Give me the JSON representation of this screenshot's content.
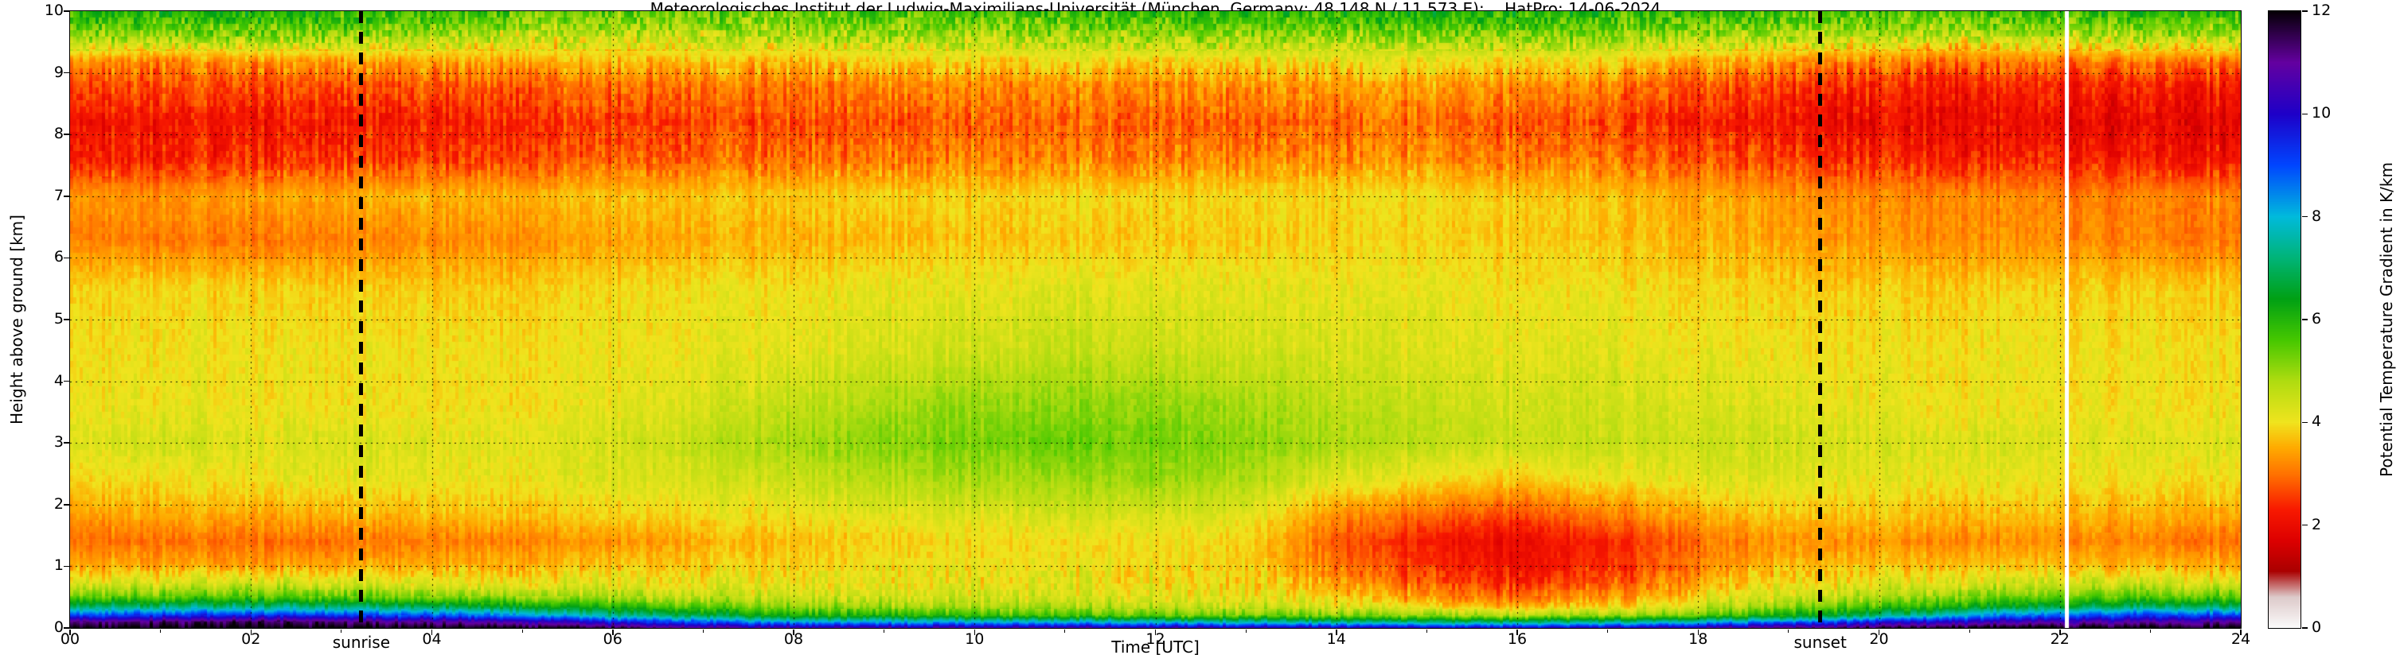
{
  "figure": {
    "title": "Meteorologisches Institut der Ludwig-Maximilians-Universität (München, Germany; 48.148 N / 11.573 E):    HatPro: 14-06-2024",
    "xlabel": "Time [UTC]",
    "ylabel": "Height above ground [km]",
    "colorbar_label": "Potential Temperature Gradient in K/km",
    "sunrise_label": "sunrise",
    "sunset_label": "sunset"
  },
  "chart_data": {
    "type": "heatmap",
    "title": "Meteorologisches Institut der Ludwig-Maximilians-Universität (München, Germany; 48.148 N / 11.573 E):    HatPro: 14-06-2024",
    "xlabel": "Time [UTC]",
    "ylabel": "Height above ground [km]",
    "values_label": "Potential Temperature Gradient in K/km",
    "x_range": [
      0,
      24
    ],
    "y_range": [
      0,
      10
    ],
    "value_range": [
      0,
      12
    ],
    "grid": true,
    "x_ticks": [
      0,
      2,
      4,
      6,
      8,
      10,
      12,
      14,
      16,
      18,
      20,
      22,
      24
    ],
    "x_tick_labels": [
      "00",
      "02",
      "04",
      "06",
      "08",
      "10",
      "12",
      "14",
      "16",
      "18",
      "20",
      "22",
      "24"
    ],
    "y_ticks": [
      0,
      1,
      2,
      3,
      4,
      5,
      6,
      7,
      8,
      9,
      10
    ],
    "y_tick_labels": [
      "0",
      "1",
      "2",
      "3",
      "4",
      "5",
      "6",
      "7",
      "8",
      "9",
      "10"
    ],
    "colorbar_ticks": [
      0,
      2,
      4,
      6,
      8,
      10,
      12
    ],
    "sunrise_time_utc": 3.22,
    "sunset_time_utc": 19.35,
    "data_gap_time_utc": 22.07,
    "colormap_stops": [
      [
        0.0,
        "#fbfbfb"
      ],
      [
        0.6,
        "#ddcaca"
      ],
      [
        1.1,
        "#aa0000"
      ],
      [
        1.7,
        "#dd0000"
      ],
      [
        2.3,
        "#f81900"
      ],
      [
        3.0,
        "#ff7300"
      ],
      [
        3.5,
        "#ffaa00"
      ],
      [
        4.0,
        "#f0e41e"
      ],
      [
        4.8,
        "#b0dc10"
      ],
      [
        5.6,
        "#46c800"
      ],
      [
        6.4,
        "#00a014"
      ],
      [
        7.2,
        "#00b478"
      ],
      [
        8.0,
        "#00badc"
      ],
      [
        9.0,
        "#0046ff"
      ],
      [
        10.0,
        "#1e00c8"
      ],
      [
        11.0,
        "#6400a0"
      ],
      [
        12.0,
        "#050005"
      ]
    ],
    "x": [
      0,
      1,
      2,
      3,
      4,
      5,
      6,
      7,
      8,
      9,
      10,
      11,
      12,
      13,
      14,
      15,
      16,
      17,
      18,
      19,
      20,
      21,
      22,
      23,
      24
    ],
    "y": [
      0,
      0.1,
      0.2,
      0.35,
      0.5,
      0.7,
      1.0,
      1.4,
      1.8,
      2.4,
      3.0,
      3.6,
      4.5,
      5.5,
      6.3,
      7.0,
      7.6,
      8.2,
      8.8,
      9.2,
      9.6,
      10
    ],
    "values": [
      [
        12,
        11.2,
        9.2,
        7.0,
        5.5,
        4.5,
        3.6,
        3.0,
        3.4,
        3.9,
        4.3,
        4.1,
        4.0,
        3.9,
        3.2,
        3.4,
        2.4,
        2.2,
        2.8,
        3.4,
        5.2,
        6.0
      ],
      [
        12,
        11.3,
        9.4,
        7.1,
        5.5,
        4.4,
        3.5,
        3.0,
        3.5,
        4.0,
        4.4,
        4.1,
        4.0,
        3.9,
        3.1,
        3.3,
        2.3,
        2.2,
        2.7,
        3.2,
        5.0,
        6.2
      ],
      [
        12,
        11.4,
        9.5,
        7.2,
        5.6,
        4.5,
        3.4,
        2.9,
        3.4,
        4.0,
        4.2,
        4.0,
        4.0,
        3.8,
        3.0,
        3.4,
        2.4,
        2.1,
        2.6,
        3.3,
        5.1,
        6.1
      ],
      [
        12,
        11.2,
        9.3,
        7.0,
        5.4,
        4.4,
        3.5,
        3.0,
        3.5,
        4.1,
        4.3,
        4.0,
        4.0,
        3.8,
        3.1,
        3.5,
        2.5,
        2.2,
        2.7,
        3.4,
        5.0,
        6.0
      ],
      [
        12,
        11.0,
        9.0,
        6.8,
        5.2,
        4.3,
        3.6,
        3.1,
        3.6,
        4.1,
        4.2,
        4.0,
        4.0,
        3.8,
        3.2,
        3.6,
        2.6,
        2.3,
        2.8,
        3.5,
        4.8,
        5.8
      ],
      [
        12,
        10.6,
        8.5,
        6.4,
        5.0,
        4.2,
        3.6,
        3.2,
        3.7,
        4.1,
        4.2,
        4.0,
        4.0,
        3.8,
        3.3,
        3.6,
        2.7,
        2.4,
        2.9,
        3.6,
        4.6,
        5.6
      ],
      [
        11.6,
        9.6,
        7.5,
        5.8,
        4.8,
        4.2,
        3.7,
        3.3,
        3.8,
        4.2,
        4.3,
        4.1,
        4.0,
        3.9,
        3.4,
        3.7,
        2.8,
        2.5,
        3.0,
        3.6,
        4.5,
        5.5
      ],
      [
        11.0,
        8.8,
        6.8,
        5.4,
        4.6,
        4.1,
        3.8,
        3.5,
        3.9,
        4.3,
        4.6,
        4.3,
        4.1,
        4.0,
        3.5,
        3.7,
        2.9,
        2.6,
        3.0,
        3.7,
        4.6,
        5.4
      ],
      [
        10.6,
        8.2,
        6.2,
        5.0,
        4.5,
        4.1,
        3.9,
        3.7,
        4.0,
        4.5,
        4.9,
        4.6,
        4.2,
        4.0,
        3.6,
        3.8,
        3.0,
        2.7,
        3.1,
        3.7,
        4.7,
        5.5
      ],
      [
        10.6,
        8.0,
        6.0,
        4.9,
        4.4,
        4.1,
        4.0,
        3.8,
        4.1,
        4.7,
        5.1,
        4.8,
        4.3,
        4.1,
        3.6,
        3.8,
        3.0,
        2.7,
        3.1,
        3.8,
        4.8,
        5.6
      ],
      [
        10.6,
        8.0,
        5.8,
        4.8,
        4.4,
        4.1,
        4.0,
        3.9,
        4.2,
        4.8,
        5.2,
        5.0,
        4.4,
        4.1,
        3.7,
        3.8,
        3.1,
        2.8,
        3.2,
        3.8,
        4.8,
        5.7
      ],
      [
        10.5,
        7.8,
        5.6,
        4.7,
        4.3,
        4.1,
        4.0,
        3.9,
        4.3,
        4.9,
        5.3,
        5.0,
        4.5,
        4.2,
        3.7,
        3.9,
        3.1,
        2.8,
        3.2,
        3.9,
        4.9,
        5.8
      ],
      [
        10.5,
        7.8,
        5.5,
        4.6,
        4.3,
        4.0,
        4.0,
        4.0,
        4.3,
        5.0,
        5.3,
        5.1,
        4.5,
        4.2,
        3.8,
        3.9,
        3.2,
        2.9,
        3.3,
        3.9,
        5.0,
        5.9
      ],
      [
        10.4,
        7.5,
        5.4,
        4.5,
        4.2,
        4.0,
        3.9,
        3.9,
        4.2,
        4.8,
        5.1,
        4.9,
        4.4,
        4.2,
        3.8,
        3.9,
        3.2,
        2.9,
        3.3,
        4.0,
        5.0,
        6.0
      ],
      [
        10.2,
        7.2,
        5.2,
        4.2,
        3.8,
        3.4,
        3.0,
        2.8,
        3.2,
        4.2,
        4.8,
        4.6,
        4.3,
        4.1,
        3.8,
        3.9,
        3.2,
        2.9,
        3.3,
        4.0,
        5.0,
        6.0
      ],
      [
        10.0,
        7.0,
        5.0,
        3.8,
        3.2,
        2.8,
        2.4,
        2.2,
        2.8,
        3.9,
        4.6,
        4.5,
        4.2,
        4.1,
        3.8,
        3.9,
        3.2,
        2.9,
        3.4,
        4.0,
        5.1,
        6.1
      ],
      [
        10.0,
        7.0,
        4.8,
        3.6,
        3.0,
        2.5,
        2.1,
        2.0,
        2.6,
        3.8,
        4.5,
        4.4,
        4.2,
        4.0,
        3.8,
        3.8,
        3.1,
        2.8,
        3.3,
        4.0,
        5.1,
        6.1
      ],
      [
        10.2,
        7.2,
        5.0,
        3.8,
        3.2,
        2.8,
        2.4,
        2.3,
        3.0,
        4.0,
        4.5,
        4.4,
        4.2,
        4.0,
        3.7,
        3.7,
        3.0,
        2.6,
        3.1,
        3.9,
        5.0,
        6.0
      ],
      [
        10.6,
        7.8,
        5.5,
        4.4,
        4.0,
        3.6,
        3.2,
        3.0,
        3.5,
        4.2,
        4.5,
        4.3,
        4.1,
        3.9,
        3.6,
        3.5,
        2.8,
        2.3,
        2.8,
        3.6,
        4.9,
        5.9
      ],
      [
        11.0,
        8.5,
        6.2,
        5.0,
        4.4,
        4.0,
        3.6,
        3.3,
        3.7,
        4.2,
        4.4,
        4.2,
        4.0,
        3.8,
        3.4,
        3.3,
        2.5,
        2.1,
        2.5,
        3.3,
        4.8,
        5.8
      ],
      [
        11.6,
        9.6,
        7.2,
        5.6,
        4.8,
        4.2,
        3.7,
        3.3,
        3.7,
        4.1,
        4.3,
        4.1,
        4.0,
        3.8,
        3.3,
        3.2,
        2.4,
        2.0,
        2.4,
        3.1,
        4.7,
        5.7
      ],
      [
        12,
        10.2,
        8.2,
        6.2,
        5.2,
        4.4,
        3.7,
        3.2,
        3.6,
        4.1,
        4.3,
        4.0,
        4.0,
        3.8,
        3.2,
        3.2,
        2.3,
        1.9,
        2.3,
        3.0,
        4.6,
        5.8
      ],
      [
        12,
        10.6,
        8.8,
        6.6,
        5.4,
        4.5,
        3.7,
        3.2,
        3.6,
        4.0,
        4.2,
        4.0,
        4.0,
        3.8,
        3.2,
        3.1,
        2.3,
        1.9,
        2.3,
        3.0,
        4.7,
        5.9
      ],
      [
        12,
        10.8,
        9.2,
        7.0,
        5.5,
        4.5,
        3.6,
        3.1,
        3.5,
        4.0,
        4.2,
        4.0,
        4.0,
        3.8,
        3.1,
        3.1,
        2.2,
        1.9,
        2.3,
        3.1,
        4.8,
        6.0
      ],
      [
        12,
        11.0,
        9.3,
        7.0,
        5.5,
        4.5,
        3.6,
        3.0,
        3.5,
        4.0,
        4.3,
        4.0,
        4.0,
        3.8,
        3.1,
        3.2,
        2.2,
        1.9,
        2.3,
        3.1,
        4.9,
        6.0
      ]
    ]
  }
}
